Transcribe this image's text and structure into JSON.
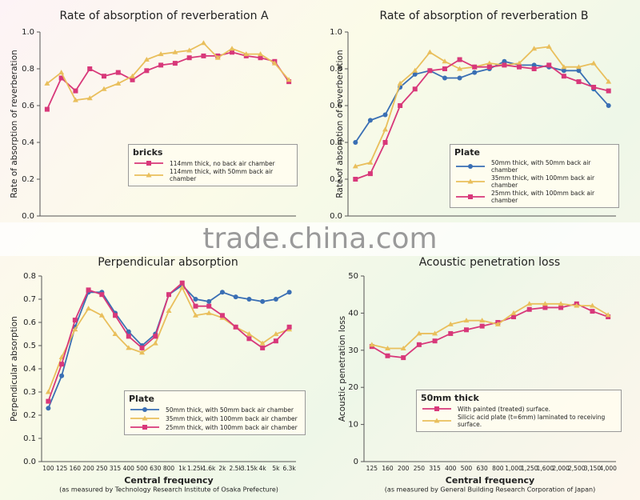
{
  "watermark": "trade.china.com",
  "chart_data": [
    {
      "type": "line",
      "title": "Rate of absorption of reverberation A",
      "ylabel": "Rate of absorption of reverberation",
      "legend_title": "bricks",
      "categories": [
        null,
        null,
        null,
        null,
        null,
        null,
        null,
        null,
        null,
        null,
        null,
        null,
        null,
        null,
        null,
        null,
        null,
        null
      ],
      "series": [
        {
          "name": "114mm thick, no back air chamber",
          "color": "#d8387a",
          "marker": "square",
          "values": [
            0.58,
            0.75,
            0.68,
            0.8,
            0.76,
            0.78,
            0.74,
            0.79,
            0.82,
            0.83,
            0.86,
            0.87,
            0.87,
            0.89,
            0.87,
            0.86,
            0.84,
            0.73
          ]
        },
        {
          "name": "114mm thick, with 50mm back air chamber",
          "color": "#e9bf5c",
          "marker": "triangle",
          "values": [
            0.72,
            0.78,
            0.63,
            0.64,
            0.69,
            0.72,
            0.76,
            0.85,
            0.88,
            0.89,
            0.9,
            0.94,
            0.86,
            0.91,
            0.88,
            0.88,
            0.83,
            0.74
          ]
        }
      ],
      "ylim": [
        0,
        1
      ],
      "yticks": [
        {
          "value": 0,
          "label": "0.0"
        },
        0.2,
        0.4,
        0.6,
        0.8,
        {
          "value": 1,
          "label": "1.0"
        }
      ],
      "grid": false
    },
    {
      "type": "line",
      "title": "Rate of absorption of reverberation B",
      "ylabel": "Rate of absorption of reverberation",
      "legend_title": "Plate",
      "categories": [
        null,
        null,
        null,
        null,
        null,
        null,
        null,
        null,
        null,
        null,
        null,
        null,
        null,
        null,
        null,
        null,
        null,
        null
      ],
      "series": [
        {
          "name": "50mm thick, with 50mm back air chamber",
          "color": "#3a6fb4",
          "marker": "circle",
          "values": [
            0.4,
            0.52,
            0.55,
            0.7,
            0.77,
            0.79,
            0.75,
            0.75,
            0.78,
            0.8,
            0.84,
            0.82,
            0.82,
            0.81,
            0.79,
            0.79,
            0.69,
            0.6
          ]
        },
        {
          "name": "35mm thick, with 100mm back air chamber",
          "color": "#e9bf5c",
          "marker": "triangle",
          "values": [
            0.27,
            0.29,
            0.47,
            0.72,
            0.79,
            0.89,
            0.84,
            0.8,
            0.81,
            0.83,
            0.82,
            0.83,
            0.91,
            0.92,
            0.81,
            0.81,
            0.83,
            0.73
          ]
        },
        {
          "name": "25mm thick, with 100mm back air chamber",
          "color": "#d8387a",
          "marker": "square",
          "values": [
            0.2,
            0.23,
            0.4,
            0.6,
            0.69,
            0.79,
            0.8,
            0.85,
            0.81,
            0.81,
            0.82,
            0.81,
            0.8,
            0.82,
            0.76,
            0.73,
            0.7,
            0.68
          ]
        }
      ],
      "ylim": [
        0,
        1
      ],
      "yticks": [
        {
          "value": 0,
          "label": "0.0"
        },
        0.2,
        0.4,
        0.6,
        0.8,
        {
          "value": 1,
          "label": "1.0"
        }
      ],
      "grid": false
    },
    {
      "type": "line",
      "title": "Perpendicular absorption",
      "ylabel": "Perpendicular absorption",
      "xlabel": "Central frequency",
      "note": "(as measured by Technology Research Institute of Osaka Prefecture)",
      "legend_title": "Plate",
      "categories": [
        "100",
        "125",
        "160",
        "200",
        "250",
        "315",
        "400",
        "500",
        "630",
        "800",
        "1k",
        "1.25k",
        "1.6k",
        "2k",
        "2.5k",
        "3.15k",
        "4k",
        "5k",
        "6.3k"
      ],
      "series": [
        {
          "name": "50mm thick, with 50mm back air chamber",
          "color": "#3a6fb4",
          "marker": "circle",
          "values": [
            0.23,
            0.37,
            0.58,
            0.73,
            0.73,
            0.64,
            0.56,
            0.5,
            0.55,
            0.72,
            0.76,
            0.7,
            0.69,
            0.73,
            0.71,
            0.7,
            0.69,
            0.7,
            0.73
          ]
        },
        {
          "name": "35mm thick, with 100mm back air chamber",
          "color": "#e9bf5c",
          "marker": "triangle",
          "values": [
            0.3,
            0.45,
            0.57,
            0.66,
            0.63,
            0.55,
            0.49,
            0.47,
            0.51,
            0.65,
            0.75,
            0.63,
            0.64,
            0.62,
            0.58,
            0.55,
            0.51,
            0.55,
            0.57
          ]
        },
        {
          "name": "25mm thick, with 100mm back air chamber",
          "color": "#d8387a",
          "marker": "square",
          "values": [
            0.26,
            0.42,
            0.61,
            0.74,
            0.72,
            0.63,
            0.54,
            0.49,
            0.54,
            0.72,
            0.77,
            0.67,
            0.67,
            0.63,
            0.58,
            0.53,
            0.49,
            0.52,
            0.58
          ]
        }
      ],
      "ylim": [
        0,
        0.8
      ],
      "yticks": [
        {
          "value": 0,
          "label": "0.0"
        },
        0.1,
        0.2,
        0.3,
        0.4,
        0.5,
        0.6,
        0.7,
        0.8
      ],
      "grid": false
    },
    {
      "type": "line",
      "title": "Acoustic penetration loss",
      "ylabel": "Acoustic penetration loss",
      "xlabel": "Central frequency",
      "note": "(as measured by General Building Research Corporation of Japan)",
      "legend_title": "50mm thick",
      "categories": [
        "125",
        "160",
        "200",
        "250",
        "315",
        "400",
        "500",
        "630",
        "800",
        "1,000",
        "1,250",
        "1,600",
        "2,000",
        "2,500",
        "3,150",
        "4,000"
      ],
      "series": [
        {
          "name": "With painted (treated) surface.",
          "color": "#d8387a",
          "marker": "square",
          "values": [
            31,
            28.5,
            28,
            31.5,
            32.5,
            34.5,
            35.5,
            36.5,
            37.5,
            39,
            41,
            41.5,
            41.5,
            42.5,
            40.5,
            39
          ]
        },
        {
          "name": "Silicic acid plate (t=6mm) laminated to receiving surface.",
          "color": "#e9bf5c",
          "marker": "triangle",
          "values": [
            31.5,
            30.5,
            30.5,
            34.5,
            34.5,
            37,
            38,
            38,
            37,
            40,
            42.5,
            42.5,
            42.5,
            42,
            42,
            39.5
          ]
        }
      ],
      "ylim": [
        0,
        50
      ],
      "yticks": [
        0,
        10,
        20,
        30,
        40,
        50
      ],
      "grid": false
    }
  ]
}
